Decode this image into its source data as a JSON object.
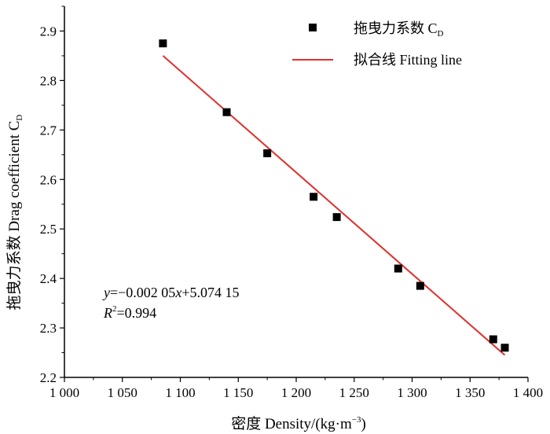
{
  "chart_data": {
    "type": "scatter",
    "title": "",
    "xlabel": "密度 Density/(kg·m⁻³)",
    "ylabel": "拖曳力系数 Drag coefficient C_D",
    "xlim": [
      1000,
      1400
    ],
    "ylim": [
      2.2,
      2.95
    ],
    "x_ticks": [
      1000,
      1050,
      1100,
      1150,
      1200,
      1250,
      1300,
      1350,
      1400
    ],
    "x_tick_labels": [
      "1 000",
      "1 050",
      "1 100",
      "1 150",
      "1 200",
      "1 250",
      "1 300",
      "1 350",
      "1 400"
    ],
    "y_ticks": [
      2.2,
      2.3,
      2.4,
      2.5,
      2.6,
      2.7,
      2.8,
      2.9
    ],
    "y_tick_labels": [
      "2.2",
      "2.3",
      "2.4",
      "2.5",
      "2.6",
      "2.7",
      "2.8",
      "2.9"
    ],
    "grid": false,
    "legend_position": "top-right",
    "series": [
      {
        "name": "拖曳力系数 C_D",
        "kind": "scatter",
        "marker": "square",
        "color": "#000000",
        "points": [
          {
            "x": 1085,
            "y": 2.875
          },
          {
            "x": 1140,
            "y": 2.736
          },
          {
            "x": 1175,
            "y": 2.653
          },
          {
            "x": 1215,
            "y": 2.565
          },
          {
            "x": 1235,
            "y": 2.524
          },
          {
            "x": 1288,
            "y": 2.42
          },
          {
            "x": 1307,
            "y": 2.385
          },
          {
            "x": 1370,
            "y": 2.277
          },
          {
            "x": 1380,
            "y": 2.26
          }
        ]
      },
      {
        "name": "拟合线 Fitting line",
        "kind": "line",
        "color": "#e0312c",
        "points": [
          {
            "x": 1085,
            "y": 2.85
          },
          {
            "x": 1380,
            "y": 2.245
          }
        ]
      }
    ],
    "annotation": {
      "equation": "y=−0.002 05x+5.074 15",
      "r_squared": "R²=0.994"
    }
  }
}
